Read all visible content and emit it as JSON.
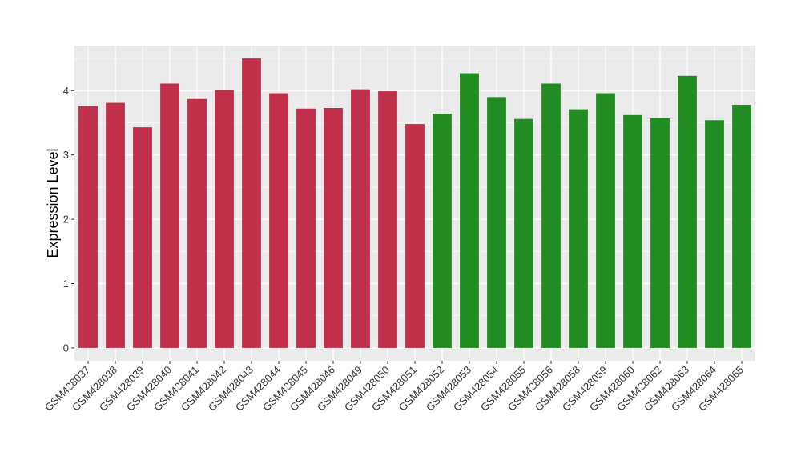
{
  "chart_data": {
    "type": "bar",
    "title": "",
    "xlabel": "",
    "ylabel": "Expression Level",
    "ylim": [
      -0.2,
      4.7
    ],
    "yticks": [
      0,
      1,
      2,
      3,
      4
    ],
    "grid": true,
    "legend": "none",
    "categories": [
      "GSM428037",
      "GSM428038",
      "GSM428039",
      "GSM428040",
      "GSM428041",
      "GSM428042",
      "GSM428043",
      "GSM428044",
      "GSM428045",
      "GSM428046",
      "GSM428049",
      "GSM428050",
      "GSM428051",
      "GSM428052",
      "GSM428053",
      "GSM428054",
      "GSM428055",
      "GSM428056",
      "GSM428058",
      "GSM428059",
      "GSM428060",
      "GSM428062",
      "GSM428063",
      "GSM428064",
      "GSM428065"
    ],
    "values": [
      3.76,
      3.81,
      3.43,
      4.11,
      3.87,
      4.01,
      4.5,
      3.96,
      3.72,
      3.73,
      4.02,
      3.99,
      3.48,
      3.64,
      4.27,
      3.9,
      3.56,
      4.11,
      3.71,
      3.96,
      3.62,
      3.57,
      4.23,
      3.54,
      3.78
    ],
    "groups": [
      0,
      0,
      0,
      0,
      0,
      0,
      0,
      0,
      0,
      0,
      0,
      0,
      0,
      1,
      1,
      1,
      1,
      1,
      1,
      1,
      1,
      1,
      1,
      1,
      1
    ],
    "group_colors": [
      "#c0304a",
      "#228b22"
    ],
    "panel_background": "#ebebeb",
    "gridline_color": "#ffffff"
  }
}
